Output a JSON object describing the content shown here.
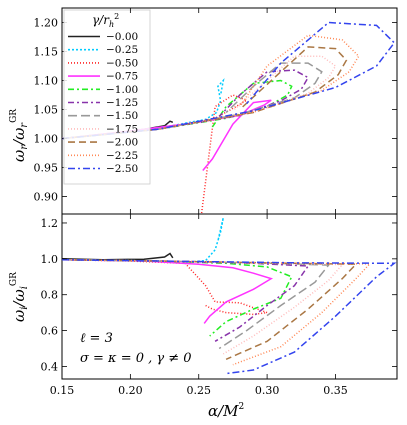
{
  "chart_data": [
    {
      "type": "line",
      "panel": "top",
      "ylabel": "ωr/ωr^GR",
      "xlim": [
        0.15,
        0.395
      ],
      "ylim": [
        0.87,
        1.225
      ],
      "yticks": [
        "0.90",
        "0.95",
        "1.00",
        "1.05",
        "1.10",
        "1.15",
        "1.20"
      ],
      "ytick_values": [
        0.9,
        0.95,
        1.0,
        1.05,
        1.1,
        1.15,
        1.2
      ],
      "legend": {
        "title": "γ/r_h²",
        "placement": "top-left"
      },
      "series": [
        {
          "name": "−0.00",
          "color": "#222222",
          "dash": "",
          "x": [
            0.15,
            0.17,
            0.19,
            0.21,
            0.225,
            0.229,
            0.231
          ],
          "y": [
            1.0,
            1.005,
            1.01,
            1.016,
            1.022,
            1.03,
            1.028
          ]
        },
        {
          "name": "−0.25",
          "color": "#00ccff",
          "dash": "2,2",
          "x": [
            0.15,
            0.19,
            0.23,
            0.255,
            0.263,
            0.266,
            0.264,
            0.268,
            0.266
          ],
          "y": [
            1.0,
            1.01,
            1.022,
            1.033,
            1.045,
            1.065,
            1.09,
            1.1,
            1.075
          ]
        },
        {
          "name": "−0.50",
          "color": "#ff2222",
          "dash": "1,2",
          "x": [
            0.15,
            0.2,
            0.24,
            0.262,
            0.275,
            0.285,
            0.275,
            0.262,
            0.252
          ],
          "y": [
            1.0,
            1.013,
            1.025,
            1.035,
            1.052,
            1.066,
            1.075,
            1.055,
            0.87
          ]
        },
        {
          "name": "−0.75",
          "color": "#ff33ff",
          "dash": "",
          "x": [
            0.15,
            0.2,
            0.25,
            0.28,
            0.298,
            0.303,
            0.29,
            0.275,
            0.26,
            0.253
          ],
          "y": [
            1.0,
            1.013,
            1.028,
            1.04,
            1.058,
            1.066,
            1.062,
            1.025,
            0.965,
            0.945
          ]
        },
        {
          "name": "−1.00",
          "color": "#22ee22",
          "dash": "6,3,2,3",
          "x": [
            0.15,
            0.22,
            0.27,
            0.3,
            0.315,
            0.318,
            0.31,
            0.29,
            0.27,
            0.26
          ],
          "y": [
            1.0,
            1.016,
            1.035,
            1.055,
            1.075,
            1.09,
            1.1,
            1.095,
            1.055,
            1.02
          ]
        },
        {
          "name": "−1.25",
          "color": "#8833aa",
          "dash": "6,3,2,3",
          "x": [
            0.15,
            0.22,
            0.28,
            0.31,
            0.325,
            0.33,
            0.32,
            0.3,
            0.28,
            0.265
          ],
          "y": [
            1.0,
            1.016,
            1.04,
            1.065,
            1.085,
            1.105,
            1.118,
            1.115,
            1.075,
            1.038
          ]
        },
        {
          "name": "−1.50",
          "color": "#999999",
          "dash": "9,4",
          "x": [
            0.15,
            0.22,
            0.28,
            0.32,
            0.335,
            0.34,
            0.33,
            0.31,
            0.29,
            0.27
          ],
          "y": [
            1.0,
            1.016,
            1.042,
            1.07,
            1.095,
            1.115,
            1.13,
            1.13,
            1.09,
            1.045
          ]
        },
        {
          "name": "−1.75",
          "color": "#ffbbbb",
          "dash": "1,2",
          "x": [
            0.15,
            0.22,
            0.29,
            0.33,
            0.345,
            0.35,
            0.34,
            0.32,
            0.3,
            0.275
          ],
          "y": [
            1.0,
            1.016,
            1.045,
            1.078,
            1.105,
            1.125,
            1.142,
            1.142,
            1.1,
            1.048
          ]
        },
        {
          "name": "−2.00",
          "color": "#aa7744",
          "dash": "7,4",
          "x": [
            0.15,
            0.22,
            0.29,
            0.335,
            0.352,
            0.358,
            0.35,
            0.33,
            0.31,
            0.28
          ],
          "y": [
            1.0,
            1.016,
            1.045,
            1.08,
            1.11,
            1.135,
            1.155,
            1.158,
            1.115,
            1.05
          ]
        },
        {
          "name": "−2.25",
          "color": "#ff8855",
          "dash": "1,2",
          "x": [
            0.15,
            0.22,
            0.29,
            0.34,
            0.36,
            0.367,
            0.355,
            0.33,
            0.3,
            0.28
          ],
          "y": [
            1.0,
            1.016,
            1.046,
            1.083,
            1.115,
            1.142,
            1.17,
            1.178,
            1.125,
            1.055
          ]
        },
        {
          "name": "−2.50",
          "color": "#3344ee",
          "dash": "7,3,2,3",
          "x": [
            0.15,
            0.22,
            0.29,
            0.35,
            0.38,
            0.393,
            0.38,
            0.345,
            0.31,
            0.285
          ],
          "y": [
            1.0,
            1.016,
            1.048,
            1.088,
            1.125,
            1.165,
            1.195,
            1.2,
            1.13,
            1.06
          ]
        }
      ]
    },
    {
      "type": "line",
      "panel": "bottom",
      "xlabel": "α/M²",
      "ylabel": "ωi/ωi^GR",
      "xlim": [
        0.15,
        0.395
      ],
      "ylim": [
        0.33,
        1.25
      ],
      "xticks": [
        "0.15",
        "0.20",
        "0.25",
        "0.30",
        "0.35"
      ],
      "xtick_values": [
        0.15,
        0.2,
        0.25,
        0.3,
        0.35
      ],
      "yticks": [
        "0.4",
        "0.6",
        "0.8",
        "1.0",
        "1.2"
      ],
      "ytick_values": [
        0.4,
        0.6,
        0.8,
        1.0,
        1.2
      ],
      "annotations": [
        "ℓ = 3",
        "σ = κ = 0 ,  γ ≠ 0"
      ],
      "series": [
        {
          "name": "−0.00",
          "color": "#222222",
          "dash": "",
          "x": [
            0.15,
            0.18,
            0.21,
            0.225,
            0.229,
            0.231
          ],
          "y": [
            1.0,
            0.995,
            0.998,
            1.01,
            1.03,
            1.005
          ]
        },
        {
          "name": "−0.25",
          "color": "#00ccff",
          "dash": "2,2",
          "x": [
            0.15,
            0.2,
            0.24,
            0.255,
            0.262,
            0.266,
            0.268,
            0.264
          ],
          "y": [
            0.995,
            0.99,
            0.98,
            0.99,
            1.05,
            1.15,
            1.23,
            1.1
          ]
        },
        {
          "name": "−0.50",
          "color": "#ff2222",
          "dash": "1,2",
          "x": [
            0.15,
            0.2,
            0.24,
            0.255,
            0.262,
            0.28,
            0.3,
            0.29,
            0.27,
            0.26,
            0.255
          ],
          "y": [
            0.995,
            0.988,
            0.975,
            0.85,
            0.76,
            0.755,
            0.7,
            0.69,
            0.7,
            0.72,
            0.74
          ]
        },
        {
          "name": "−0.75",
          "color": "#ff33ff",
          "dash": "",
          "x": [
            0.15,
            0.21,
            0.25,
            0.275,
            0.29,
            0.303,
            0.29,
            0.27,
            0.258,
            0.254
          ],
          "y": [
            0.995,
            0.988,
            0.97,
            0.95,
            0.92,
            0.89,
            0.83,
            0.76,
            0.68,
            0.64
          ]
        },
        {
          "name": "−1.00",
          "color": "#22ee22",
          "dash": "6,3,2,3",
          "x": [
            0.15,
            0.22,
            0.27,
            0.3,
            0.318,
            0.31,
            0.29,
            0.27,
            0.258
          ],
          "y": [
            0.995,
            0.988,
            0.975,
            0.955,
            0.9,
            0.78,
            0.72,
            0.65,
            0.57
          ]
        },
        {
          "name": "−1.25",
          "color": "#8833aa",
          "dash": "6,3,2,3",
          "x": [
            0.15,
            0.22,
            0.29,
            0.33,
            0.32,
            0.3,
            0.28,
            0.262
          ],
          "y": [
            0.995,
            0.988,
            0.975,
            0.96,
            0.85,
            0.74,
            0.62,
            0.54
          ]
        },
        {
          "name": "−1.50",
          "color": "#999999",
          "dash": "9,4",
          "x": [
            0.15,
            0.22,
            0.3,
            0.345,
            0.335,
            0.31,
            0.285,
            0.265
          ],
          "y": [
            0.995,
            0.988,
            0.976,
            0.965,
            0.87,
            0.74,
            0.6,
            0.5
          ]
        },
        {
          "name": "−1.75",
          "color": "#ffbbbb",
          "dash": "1,2",
          "x": [
            0.15,
            0.22,
            0.3,
            0.355,
            0.345,
            0.32,
            0.29,
            0.268
          ],
          "y": [
            0.995,
            0.988,
            0.976,
            0.968,
            0.88,
            0.73,
            0.57,
            0.47
          ]
        },
        {
          "name": "−2.00",
          "color": "#aa7744",
          "dash": "7,4",
          "x": [
            0.15,
            0.22,
            0.31,
            0.365,
            0.355,
            0.33,
            0.3,
            0.27
          ],
          "y": [
            0.995,
            0.988,
            0.976,
            0.97,
            0.89,
            0.72,
            0.54,
            0.44
          ]
        },
        {
          "name": "−2.25",
          "color": "#ff8855",
          "dash": "1,2",
          "x": [
            0.15,
            0.22,
            0.31,
            0.375,
            0.365,
            0.34,
            0.31,
            0.275
          ],
          "y": [
            0.995,
            0.988,
            0.977,
            0.972,
            0.89,
            0.7,
            0.51,
            0.41
          ]
        },
        {
          "name": "−2.50",
          "color": "#3344ee",
          "dash": "7,3,2,3",
          "x": [
            0.15,
            0.22,
            0.32,
            0.393,
            0.38,
            0.35,
            0.32,
            0.29,
            0.27
          ],
          "y": [
            0.995,
            0.988,
            0.978,
            0.975,
            0.9,
            0.68,
            0.48,
            0.38,
            0.36
          ]
        }
      ]
    }
  ]
}
